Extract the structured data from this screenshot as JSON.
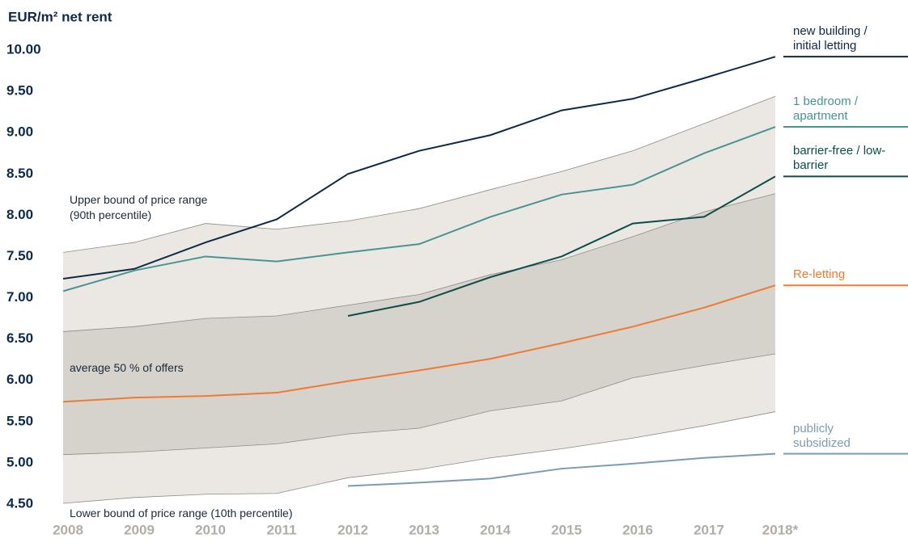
{
  "chart_data": {
    "type": "line",
    "y_label": "EUR/m² net rent",
    "categories": [
      "2008",
      "2009",
      "2010",
      "2011",
      "2012",
      "2013",
      "2014",
      "2015",
      "2016",
      "2017",
      "2018*"
    ],
    "ylim": [
      4.5,
      10
    ],
    "yticks": [
      {
        "value": 4.5,
        "label": "4.50"
      },
      {
        "value": 5,
        "label": "5.00"
      },
      {
        "value": 5.5,
        "label": "5.50"
      },
      {
        "value": 6,
        "label": "6.00"
      },
      {
        "value": 6.5,
        "label": "6.50"
      },
      {
        "value": 7,
        "label": "7.00"
      },
      {
        "value": 7.5,
        "label": "7.50"
      },
      {
        "value": 8,
        "label": "8.00"
      },
      {
        "value": 8.5,
        "label": "8.50"
      },
      {
        "value": 9,
        "label": "9.00"
      },
      {
        "value": 9.5,
        "label": "9.50"
      },
      {
        "value": 10,
        "label": "10.00"
      }
    ],
    "bands": [
      {
        "color": "#ebe8e4",
        "edge_color": "#8f8a85",
        "upper": [
          7.55,
          7.67,
          7.9,
          7.83,
          7.93,
          8.08,
          8.31,
          8.53,
          8.78,
          9.11,
          9.44
        ],
        "lower": [
          4.51,
          4.58,
          4.62,
          4.63,
          4.82,
          4.92,
          5.06,
          5.17,
          5.3,
          5.45,
          5.62
        ]
      },
      {
        "color": "#d6d2cc",
        "edge_color": "#8f8a85",
        "upper": [
          6.59,
          6.65,
          6.75,
          6.78,
          6.91,
          7.04,
          7.28,
          7.46,
          7.74,
          8.04,
          8.26
        ],
        "lower": [
          5.1,
          5.13,
          5.18,
          5.23,
          5.35,
          5.42,
          5.63,
          5.75,
          6.03,
          6.18,
          6.32
        ]
      }
    ],
    "annotations": [
      "Upper bound of price range (90th percentile)",
      "average 50 % of offers",
      "Lower bound of price range (10th percentile)"
    ],
    "series": [
      {
        "name": "new building / initial letting",
        "color": "#0e2a47",
        "values": [
          7.23,
          7.35,
          7.67,
          7.95,
          8.5,
          8.78,
          8.97,
          9.27,
          9.41,
          9.66,
          9.92
        ]
      },
      {
        "name": "1 bedroom / apartment",
        "color": "#4a9393",
        "values": [
          7.08,
          7.33,
          7.5,
          7.44,
          7.55,
          7.65,
          7.98,
          8.25,
          8.37,
          8.75,
          9.07
        ]
      },
      {
        "name": "barrier-free / low-barrier",
        "color": "#0c4f4a",
        "values": [
          null,
          null,
          null,
          null,
          6.78,
          6.95,
          7.25,
          7.5,
          7.9,
          7.98,
          8.47
        ]
      },
      {
        "name": "Re-letting",
        "color": "#f07a33",
        "values": [
          5.74,
          5.79,
          5.81,
          5.85,
          5.99,
          6.12,
          6.26,
          6.45,
          6.65,
          6.88,
          7.15
        ]
      },
      {
        "name": "publicly subsidized",
        "color": "#7a9cb5",
        "values": [
          null,
          null,
          null,
          null,
          4.72,
          4.76,
          4.81,
          4.93,
          4.99,
          5.06,
          5.11
        ]
      }
    ]
  }
}
